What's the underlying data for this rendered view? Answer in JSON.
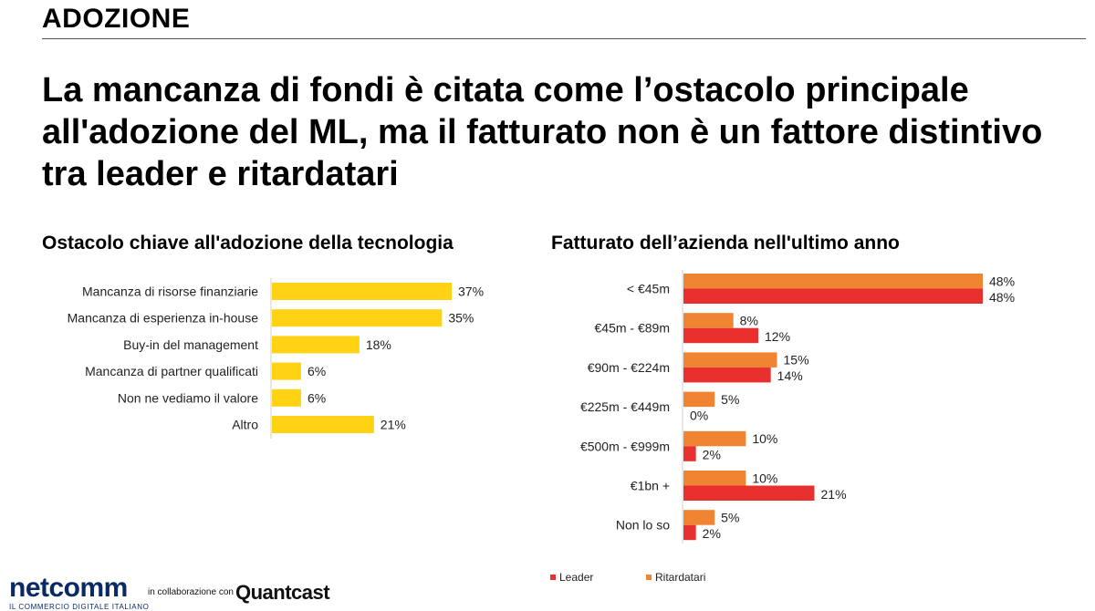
{
  "header": {
    "section": "ADOZIONE",
    "headline": "La mancanza di fondi è citata come l’ostacolo principale all'adozione del ML, ma il fatturato non è un fattore distintivo tra leader e ritardatari"
  },
  "footer": {
    "logo": "netcomm",
    "logo_tagline": "IL COMMERCIO DIGITALE ITALIANO",
    "collab_text": "in collaborazione con",
    "partner": "Quantcast"
  },
  "colors": {
    "yellow": "#FFD213",
    "leader": "#E8302F",
    "ritardatari": "#F08433"
  },
  "chart_data": [
    {
      "type": "bar",
      "orientation": "horizontal",
      "title": "Ostacolo chiave all'adozione della tecnologia",
      "categories": [
        "Mancanza di risorse finanziarie",
        "Mancanza di esperienza in-house",
        "Buy-in del management",
        "Mancanza di partner qualificati",
        "Non ne vediamo il valore",
        "Altro"
      ],
      "values": [
        37,
        35,
        18,
        6,
        6,
        21
      ],
      "labels": [
        "37%",
        "35%",
        "18%",
        "6%",
        "6%",
        "21%"
      ],
      "unit": "%",
      "xlim": [
        0,
        40
      ]
    },
    {
      "type": "bar",
      "orientation": "horizontal",
      "title": "Fatturato dell’azienda nell'ultimo anno",
      "categories": [
        "< €45m",
        "€45m - €89m",
        "€90m - €224m",
        "€225m - €449m",
        "€500m - €999m",
        "€1bn +",
        "Non lo so"
      ],
      "series": [
        {
          "name": "Ritardatari",
          "values": [
            48,
            8,
            15,
            5,
            10,
            10,
            5
          ],
          "labels": [
            "48%",
            "8%",
            "15%",
            "5%",
            "10%",
            "10%",
            "5%"
          ]
        },
        {
          "name": "Leader",
          "values": [
            48,
            12,
            14,
            0,
            2,
            21,
            2
          ],
          "labels": [
            "48%",
            "12%",
            "14%",
            "0%",
            "2%",
            "21%",
            "2%"
          ]
        }
      ],
      "legend": [
        "Leader",
        "Ritardatari"
      ],
      "legend_position": "bottom",
      "unit": "%",
      "xlim": [
        0,
        50
      ]
    }
  ]
}
